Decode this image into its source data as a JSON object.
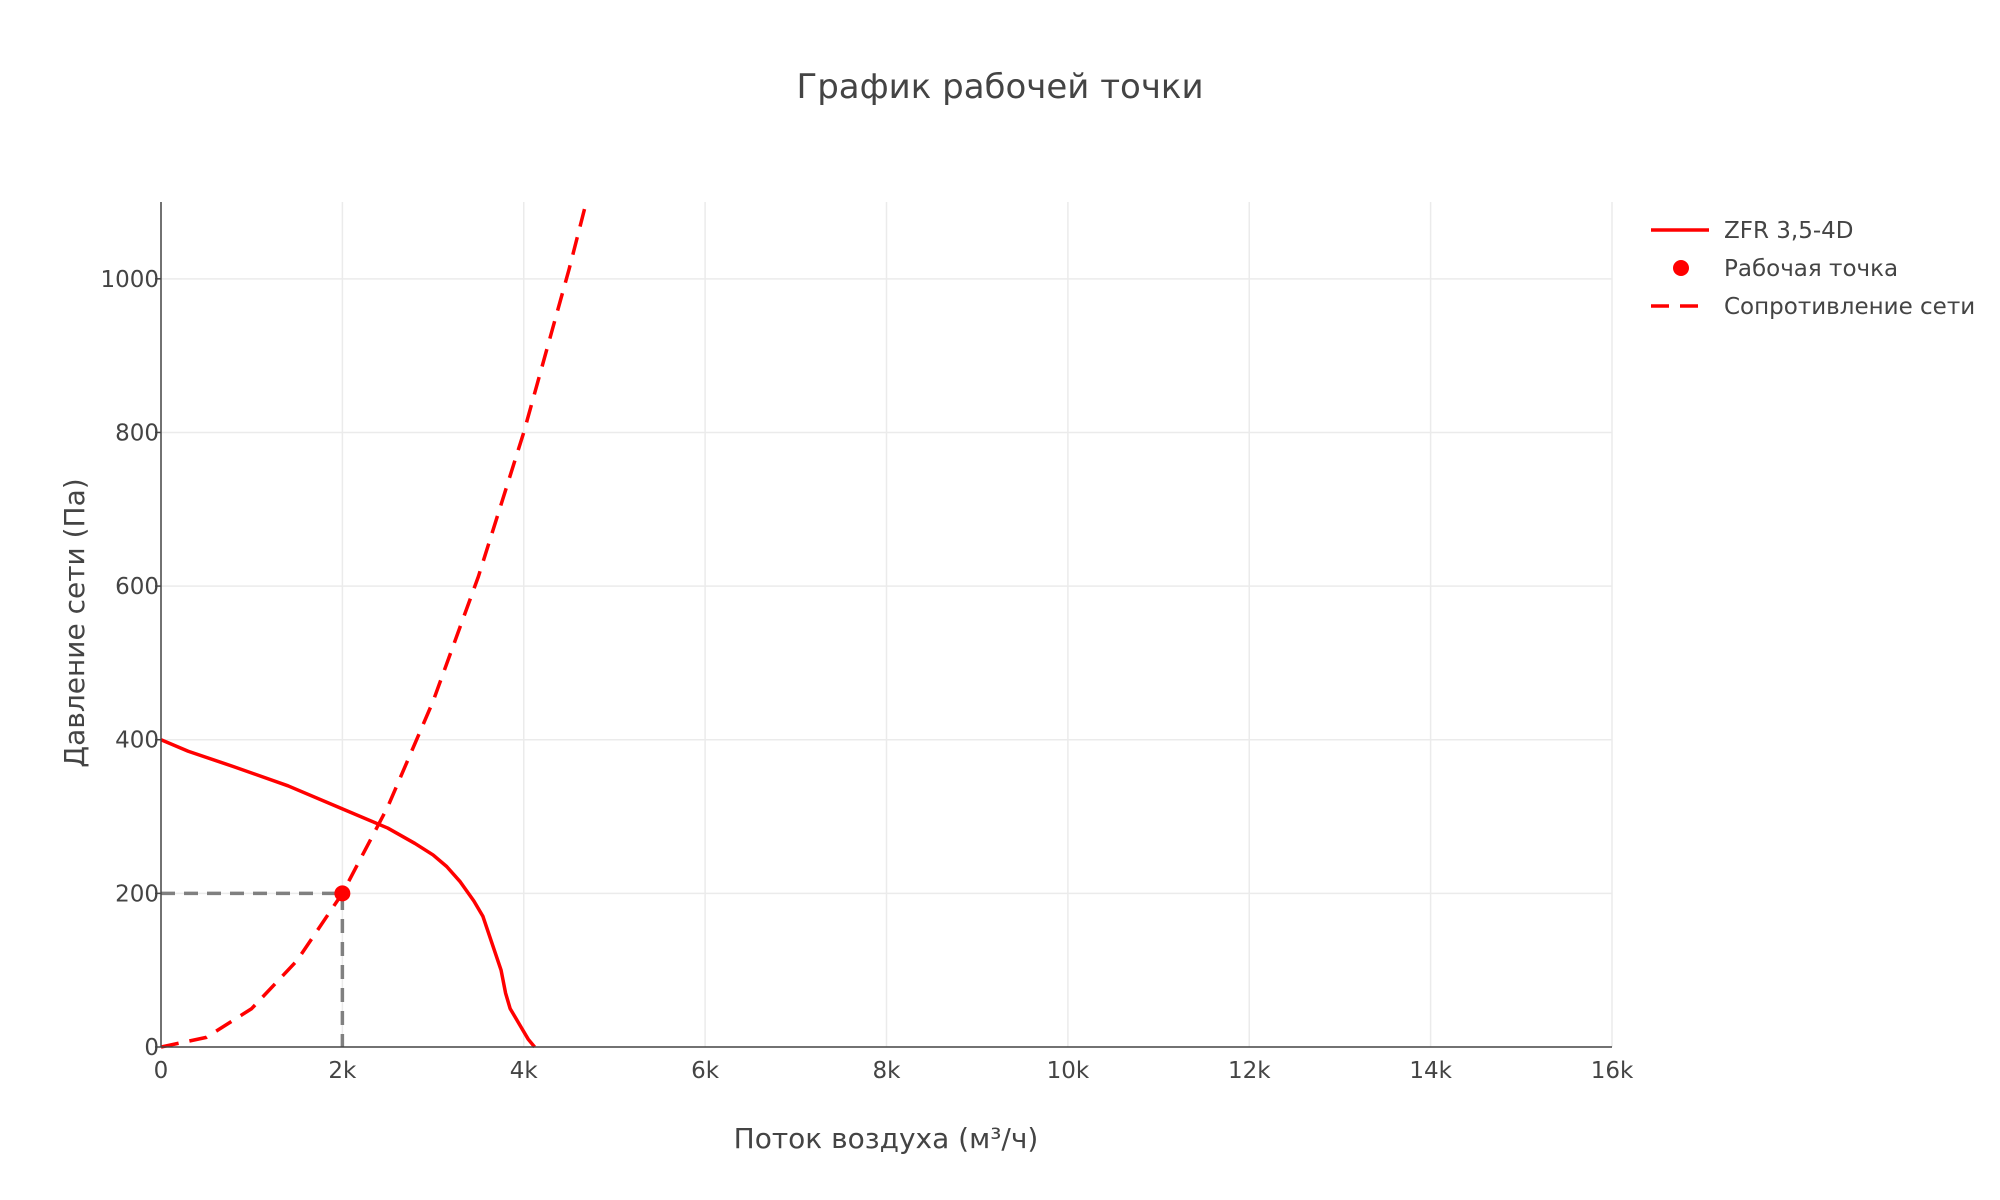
{
  "chart_data": {
    "type": "line",
    "title": "График рабочей точки",
    "xlabel": "Поток воздуха (м³/ч)",
    "ylabel": "Давление сети (Па)",
    "xlim": [
      0,
      16000
    ],
    "ylim": [
      0,
      1100
    ],
    "x_ticks": [
      0,
      2000,
      4000,
      6000,
      8000,
      10000,
      12000,
      14000,
      16000
    ],
    "x_tick_labels": [
      "0",
      "2k",
      "4k",
      "6k",
      "8k",
      "10k",
      "12k",
      "14k",
      "16k"
    ],
    "y_ticks": [
      0,
      200,
      400,
      600,
      800,
      1000
    ],
    "y_tick_labels": [
      "0",
      "200",
      "400",
      "600",
      "800",
      "1000"
    ],
    "grid": true,
    "legend_position": "top-right",
    "series": [
      {
        "name": "ZFR 3,5-4D",
        "style": "solid",
        "color": "#ff0000",
        "x": [
          0,
          300,
          800,
          1400,
          2000,
          2500,
          2800,
          3000,
          3150,
          3300,
          3450,
          3550,
          3650,
          3750,
          3800,
          3850,
          3950,
          4050,
          4120
        ],
        "y": [
          400,
          385,
          365,
          340,
          310,
          285,
          265,
          250,
          235,
          215,
          190,
          170,
          135,
          100,
          70,
          50,
          30,
          10,
          0
        ]
      },
      {
        "name": "Рабочая точка",
        "style": "marker",
        "color": "#ff0000",
        "x": [
          2000
        ],
        "y": [
          200
        ]
      },
      {
        "name": "Сопротивление сети",
        "style": "dashed",
        "color": "#ff0000",
        "x": [
          0,
          500,
          1000,
          1500,
          2000,
          2500,
          3000,
          3500,
          4000,
          4500,
          4700
        ],
        "y": [
          0,
          12.5,
          50,
          112.5,
          200,
          312.5,
          450,
          612.5,
          800,
          1012.5,
          1104.6
        ]
      }
    ],
    "guides": {
      "color": "#808080",
      "x": 2000,
      "y": 200
    }
  }
}
